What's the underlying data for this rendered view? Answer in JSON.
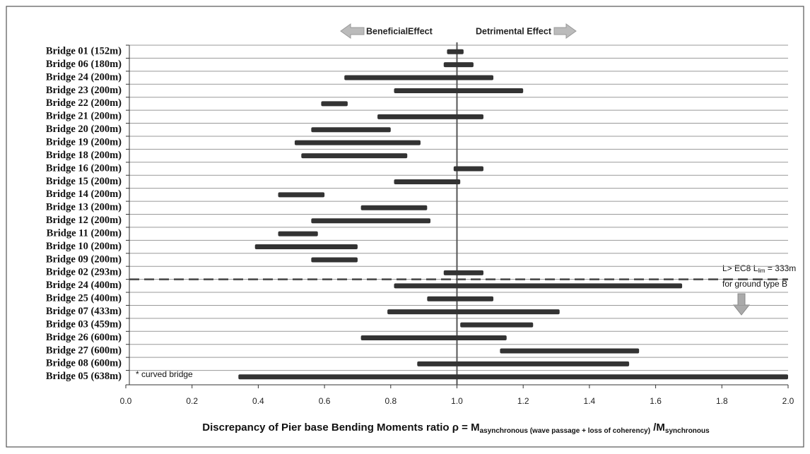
{
  "chart_data": {
    "type": "range-bar",
    "categories": [
      "Bridge 01 (152m)",
      "Bridge 06 (180m)",
      "Bridge 24 (200m)",
      "Bridge 23 (200m)",
      "Bridge 22 (200m)",
      "Bridge 21 (200m)",
      "Bridge 20 (200m)",
      "Bridge 19 (200m)",
      "Bridge 18 (200m)",
      "Bridge 16 (200m)",
      "Bridge 15 (200m)",
      "Bridge 14 (200m)",
      "Bridge 13 (200m)",
      "Bridge 12 (200m)",
      "Bridge 11 (200m)",
      "Bridge 10 (200m)",
      "Bridge 09 (200m)",
      "Bridge 02 (293m)",
      "Bridge 24 (400m)",
      "Bridge 25 (400m)",
      "Bridge 07 (433m)",
      "Bridge 03 (459m)",
      "Bridge 26 (600m)",
      "Bridge 27 (600m)",
      "Bridge 08 (600m)",
      "Bridge 05 (638m)"
    ],
    "low": [
      0.97,
      0.96,
      0.66,
      0.81,
      0.59,
      0.76,
      0.56,
      0.51,
      0.53,
      0.99,
      0.81,
      0.46,
      0.71,
      0.56,
      0.46,
      0.39,
      0.56,
      0.96,
      0.81,
      0.91,
      0.79,
      1.01,
      0.71,
      1.13,
      0.88,
      0.34
    ],
    "high": [
      1.02,
      1.05,
      1.11,
      1.2,
      0.67,
      1.08,
      0.8,
      0.89,
      0.85,
      1.08,
      1.01,
      0.6,
      0.91,
      0.92,
      0.58,
      0.7,
      0.7,
      1.08,
      1.68,
      1.11,
      1.31,
      1.23,
      1.15,
      1.55,
      1.52,
      2.0
    ],
    "color": "#333333",
    "reference_x": 1,
    "xlim": [
      0,
      2
    ],
    "xticks": [
      {
        "value": 0,
        "label": "0.0"
      },
      0.2,
      0.4,
      0.6,
      0.8,
      {
        "value": 1,
        "label": "1.0"
      },
      1.2,
      1.4,
      1.6,
      1.8,
      {
        "value": 2,
        "label": "2.0"
      }
    ],
    "xlabel": {
      "main": "Discrepancy of Pier base Bending Moments ratio ρ = M",
      "sub1": "asynchronous (wave passage + loss of coherency)",
      "mid": " /M",
      "sub2": "synchronous"
    },
    "annotations": {
      "beneficial": "BeneficialEffect",
      "detrimental": "Detrimental Effect",
      "limit_line1_a": "L> EC8 L",
      "limit_line1_sub": "lim",
      "limit_line1_b": " = 333m",
      "limit_line2": "for ground type B",
      "curved": "* curved bridge"
    }
  }
}
